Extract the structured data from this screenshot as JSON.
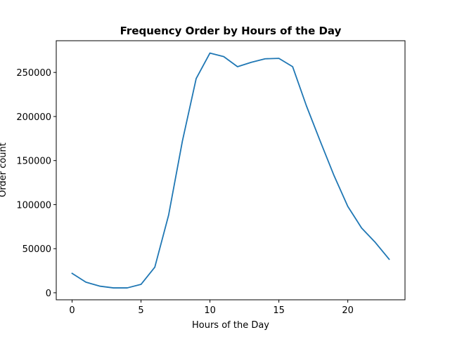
{
  "chart_data": {
    "type": "line",
    "title": "Frequency Order by Hours of the Day",
    "xlabel": "Hours of the Day",
    "ylabel": "Order count",
    "xlim": [
      -1.15,
      24.15
    ],
    "ylim": [
      -8000,
      286000
    ],
    "x_ticks": [
      0,
      5,
      10,
      15,
      20
    ],
    "y_ticks": [
      0,
      50000,
      100000,
      150000,
      200000,
      250000
    ],
    "grid": false,
    "series": [
      {
        "color": "#1f77b4",
        "x": [
          0,
          1,
          2,
          3,
          4,
          5,
          6,
          7,
          8,
          9,
          10,
          11,
          12,
          13,
          14,
          15,
          16,
          17,
          18,
          19,
          20,
          21,
          22,
          23
        ],
        "y": [
          22000,
          12000,
          7500,
          5500,
          5500,
          9500,
          29000,
          88000,
          172000,
          243000,
          272000,
          268000,
          256500,
          261500,
          265500,
          266000,
          256500,
          212000,
          172000,
          133000,
          98000,
          73500,
          57000,
          38000
        ]
      }
    ]
  }
}
